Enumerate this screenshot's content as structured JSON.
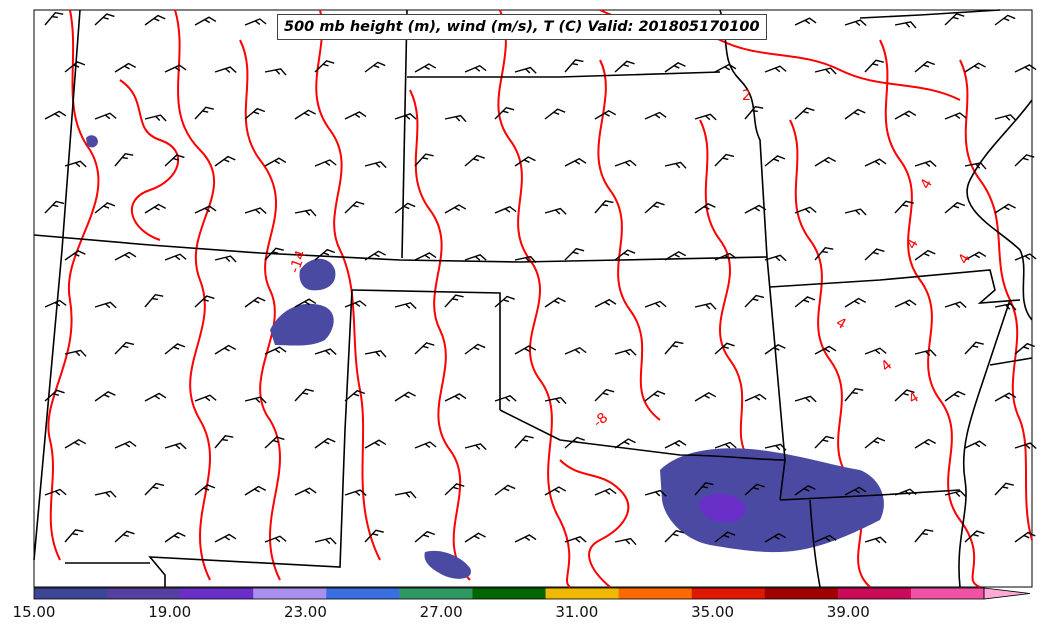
{
  "title": "500 mb height (m), wind (m/s), T (C) Valid: 201805170100",
  "colorbar": {
    "tick_labels": [
      "15.00",
      "19.00",
      "23.00",
      "27.00",
      "31.00",
      "35.00",
      "39.00"
    ],
    "tick_values": [
      15,
      19,
      23,
      27,
      31,
      35,
      39
    ],
    "min": 15,
    "max": 43,
    "step": 2,
    "extend": "max",
    "colors": [
      "#3c4798",
      "#55409f",
      "#6b2fc9",
      "#a98ff0",
      "#3a6fe3",
      "#2e9a62",
      "#006600",
      "#f0b800",
      "#ff6a00",
      "#e01800",
      "#a00000",
      "#cc0a5a",
      "#f252a6",
      "#ffaad4"
    ]
  },
  "contour_labels": [
    "2",
    "4",
    "4",
    "4",
    "4",
    "4",
    "4",
    "-8",
    "-14"
  ],
  "contour_color": "#ff0000",
  "shading_color": "#4b4aa2",
  "shading_core_color": "#6b2fc9",
  "border_color": "#000000"
}
